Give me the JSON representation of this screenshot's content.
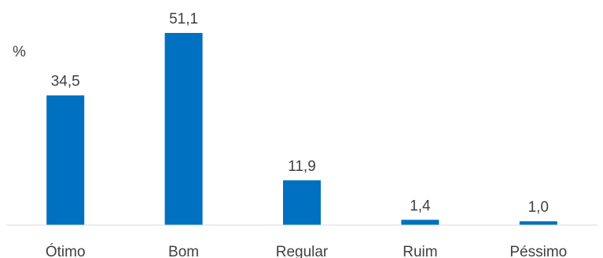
{
  "chart_data": {
    "type": "bar",
    "unit_label": "%",
    "categories": [
      "Ótimo",
      "Bom",
      "Regular",
      "Ruim",
      "Péssimo"
    ],
    "values": [
      34.5,
      51.1,
      11.9,
      1.4,
      1.0
    ],
    "value_labels": [
      "34,5",
      "51,1",
      "11,9",
      "1,4",
      "1,0"
    ],
    "ylim": [
      0,
      51.1
    ],
    "grid": false,
    "legend": "none",
    "bar_color": "#0070c0",
    "axis_color": "#d9d9d9",
    "text_color": "#404040"
  }
}
